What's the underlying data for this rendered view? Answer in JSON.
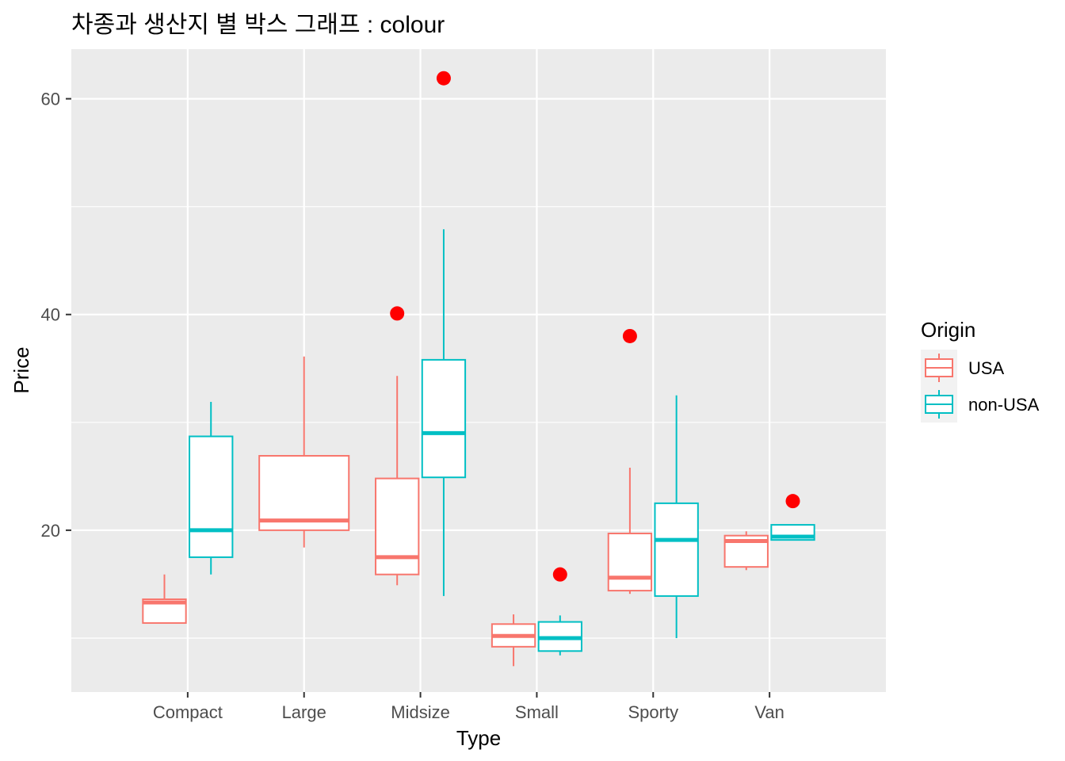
{
  "chart_data": {
    "type": "boxplot",
    "title": "차종과 생산지 별 박스 그래프 : colour",
    "xlabel": "Type",
    "ylabel": "Price",
    "categories": [
      "Compact",
      "Large",
      "Midsize",
      "Small",
      "Sporty",
      "Van"
    ],
    "ylim": [
      5.0,
      64.6
    ],
    "yticks": [
      20,
      40,
      60
    ],
    "grid": true,
    "outlier_color": "#ff0000",
    "legend": {
      "title": "Origin",
      "position": "right",
      "entries": [
        {
          "label": "USA",
          "color": "#f8766d"
        },
        {
          "label": "non-USA",
          "color": "#00bfc4"
        }
      ]
    },
    "series": [
      {
        "name": "USA",
        "color": "#f8766d",
        "boxes": [
          {
            "category": "Compact",
            "low": 11.4,
            "q1": 11.4,
            "median": 13.3,
            "q3": 13.6,
            "high": 15.9,
            "outliers": []
          },
          {
            "category": "Large",
            "low": 18.4,
            "q1": 20.0,
            "median": 20.9,
            "q3": 26.9,
            "high": 36.1,
            "outliers": []
          },
          {
            "category": "Midsize",
            "low": 14.9,
            "q1": 15.9,
            "median": 17.5,
            "q3": 24.8,
            "high": 34.3,
            "outliers": [
              40.1
            ]
          },
          {
            "category": "Small",
            "low": 7.4,
            "q1": 9.2,
            "median": 10.2,
            "q3": 11.3,
            "high": 12.2,
            "outliers": []
          },
          {
            "category": "Sporty",
            "low": 14.1,
            "q1": 14.4,
            "median": 15.6,
            "q3": 19.7,
            "high": 25.8,
            "outliers": [
              38.0
            ]
          },
          {
            "category": "Van",
            "low": 16.3,
            "q1": 16.6,
            "median": 19.0,
            "q3": 19.5,
            "high": 19.9,
            "outliers": []
          }
        ]
      },
      {
        "name": "non-USA",
        "color": "#00bfc4",
        "boxes": [
          {
            "category": "Compact",
            "low": 15.9,
            "q1": 17.5,
            "median": 20.0,
            "q3": 28.7,
            "high": 31.9,
            "outliers": []
          },
          {
            "category": "Midsize",
            "low": 13.9,
            "q1": 24.9,
            "median": 29.0,
            "q3": 35.8,
            "high": 47.9,
            "outliers": [
              61.9
            ]
          },
          {
            "category": "Small",
            "low": 8.4,
            "q1": 8.8,
            "median": 10.0,
            "q3": 11.5,
            "high": 12.1,
            "outliers": [
              15.9
            ]
          },
          {
            "category": "Sporty",
            "low": 10.0,
            "q1": 13.9,
            "median": 19.1,
            "q3": 22.5,
            "high": 32.5,
            "outliers": []
          },
          {
            "category": "Van",
            "low": 19.1,
            "q1": 19.1,
            "median": 19.4,
            "q3": 20.5,
            "high": 20.5,
            "outliers": [
              22.7
            ]
          }
        ]
      }
    ]
  }
}
